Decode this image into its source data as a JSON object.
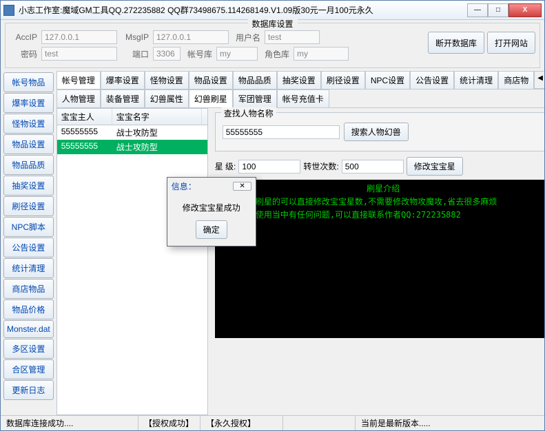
{
  "window_title": "小志工作室:魔域GM工具QQ.272235882 QQ群73498675.114268149.V1.09版30元一月100元永久",
  "win_btns": {
    "min": "—",
    "max": "□",
    "close": "X"
  },
  "db_group": {
    "title": "数据库设置",
    "accip_label": "AccIP",
    "accip": "127.0.0.1",
    "msgip_label": "MsgIP",
    "msgip": "127.0.0.1",
    "user_label": "用户名",
    "user": "test",
    "pwd_label": "密码",
    "pwd": "test",
    "port_label": "端口",
    "port": "3306",
    "acctdb_label": "帐号库",
    "acctdb": "my",
    "roledb_label": "角色库",
    "roledb": "my",
    "disconnect": "断开数据库",
    "website": "打开网站"
  },
  "sidebar": [
    "帐号物品",
    "爆率设置",
    "怪物设置",
    "物品设置",
    "物品品质",
    "抽奖设置",
    "刷径设置",
    "NPC脚本",
    "公告设置",
    "统计清理",
    "商店物品",
    "物品价格",
    "Monster.dat",
    "多区设置",
    "合区管理",
    "更新日志"
  ],
  "tabs1": [
    "帐号管理",
    "爆率设置",
    "怪物设置",
    "物品设置",
    "物品品质",
    "抽奖设置",
    "刷径设置",
    "NPC设置",
    "公告设置",
    "统计清理",
    "商店物"
  ],
  "tabs1_active": 0,
  "tabs2": [
    "人物管理",
    "装备管理",
    "幻兽属性",
    "幻兽刷星",
    "军团管理",
    "帐号充值卡"
  ],
  "tabs2_active": 3,
  "table": {
    "headers": [
      "宝宝主人",
      "宝宝名字"
    ],
    "rows": [
      [
        "55555555",
        "战士攻防型"
      ],
      [
        "55555555",
        "战士攻防型"
      ]
    ],
    "selected_index": 1
  },
  "search": {
    "title": "查找人物名称",
    "value": "55555555",
    "button": "搜索人物幻兽"
  },
  "params": {
    "star_label": "星    级:",
    "star": "100",
    "reborn_label": "转世次数:",
    "reborn": "500",
    "apply": "修改宝宝星"
  },
  "console": {
    "title": "刷星介绍",
    "lines": [
      "1：本工具刷星的可以直接修改宝宝星数,不需要修改物攻魔攻,省去很多麻烦",
      "2：如果在使用当中有任何问题,可以直接联系作者QQ:272235882"
    ]
  },
  "dialog": {
    "title": "信息：",
    "message": "修改宝宝星成功",
    "ok": "确定"
  },
  "status": {
    "s1": "数据库连接成功....",
    "s2": "【授权成功】",
    "s3": "【永久授权】",
    "s4": "当前是最新版本....."
  },
  "colors": {
    "selected_row": "#00b060",
    "console_bg": "#000000",
    "console_fg": "#00cc00",
    "link_blue": "#0046b0"
  }
}
